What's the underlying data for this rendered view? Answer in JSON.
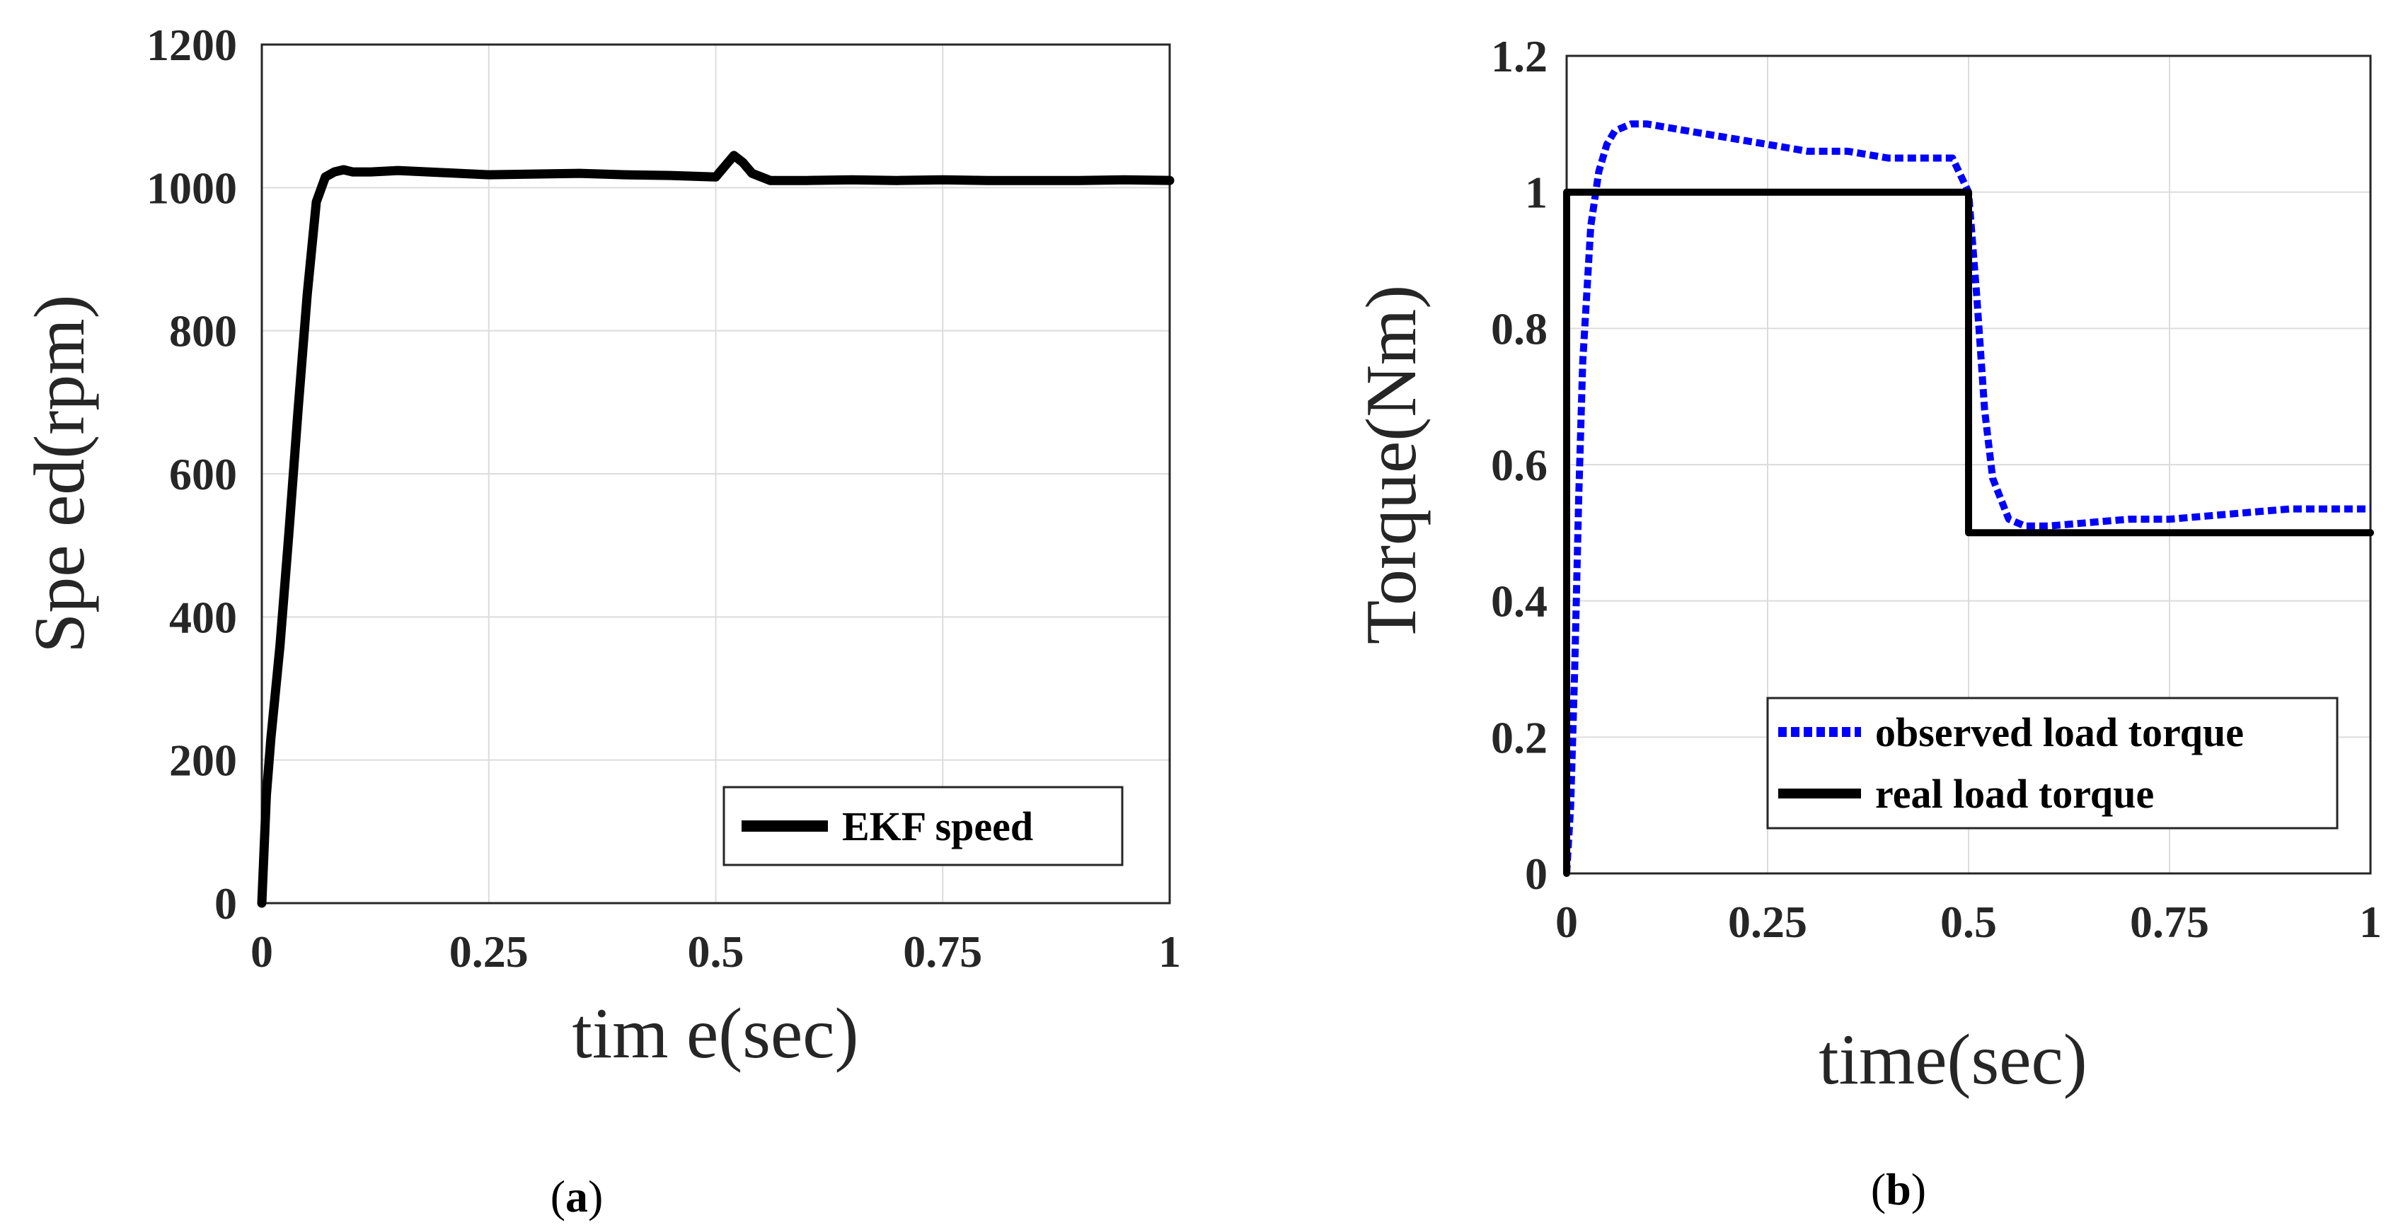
{
  "colors": {
    "black_line": "#000000",
    "blue_line": "#0000ff",
    "grid": "#dcdcdc",
    "axis": "#262626"
  },
  "chart_data": [
    {
      "id": "a",
      "type": "line",
      "caption": {
        "open": "(",
        "letter": "a",
        "close": ")"
      },
      "xlabel": "tim e(sec)",
      "ylabel": "Spe ed(rpm)",
      "xlim": [
        0,
        1
      ],
      "ylim": [
        0,
        1200
      ],
      "xticks": [
        0,
        0.25,
        0.5,
        0.75,
        1
      ],
      "xtick_labels": [
        "0",
        "0.25",
        "0.5",
        "0.75",
        "1"
      ],
      "yticks": [
        0,
        200,
        400,
        600,
        800,
        1000,
        1200
      ],
      "ytick_labels": [
        "0",
        "200",
        "400",
        "600",
        "800",
        "1000",
        "1200"
      ],
      "grid": true,
      "legend_position": "bottom-right",
      "series": [
        {
          "name": "EKF speed",
          "color": "#000000",
          "style": "solid",
          "x": [
            0,
            0.005,
            0.01,
            0.02,
            0.03,
            0.04,
            0.05,
            0.06,
            0.07,
            0.08,
            0.09,
            0.1,
            0.12,
            0.15,
            0.2,
            0.25,
            0.3,
            0.35,
            0.4,
            0.45,
            0.5,
            0.51,
            0.52,
            0.53,
            0.54,
            0.56,
            0.6,
            0.65,
            0.7,
            0.75,
            0.8,
            0.85,
            0.9,
            0.95,
            1.0
          ],
          "y": [
            0,
            150,
            230,
            360,
            520,
            690,
            850,
            980,
            1015,
            1022,
            1025,
            1022,
            1022,
            1024,
            1021,
            1018,
            1019,
            1020,
            1018,
            1017,
            1015,
            1030,
            1045,
            1035,
            1020,
            1010,
            1010,
            1011,
            1010,
            1011,
            1010,
            1010,
            1010,
            1011,
            1010
          ]
        }
      ]
    },
    {
      "id": "b",
      "type": "line",
      "caption": {
        "open": "(",
        "letter": "b",
        "close": ")"
      },
      "xlabel": "time(sec)",
      "ylabel": "Torque(Nm)",
      "xlim": [
        0,
        1
      ],
      "ylim": [
        0,
        1.2
      ],
      "xticks": [
        0,
        0.25,
        0.5,
        0.75,
        1
      ],
      "xtick_labels": [
        "0",
        "0.25",
        "0.5",
        "0.75",
        "1"
      ],
      "yticks": [
        0,
        0.2,
        0.4,
        0.6,
        0.8,
        1,
        1.2
      ],
      "ytick_labels": [
        "0",
        "0.2",
        "0.4",
        "0.6",
        "0.8",
        "1",
        "1.2"
      ],
      "grid": true,
      "legend_position": "bottom-right",
      "series": [
        {
          "name": "observed load torque",
          "color": "#0000ff",
          "style": "dotted",
          "x": [
            0,
            0.005,
            0.01,
            0.015,
            0.02,
            0.03,
            0.04,
            0.05,
            0.06,
            0.08,
            0.1,
            0.15,
            0.2,
            0.25,
            0.3,
            0.35,
            0.4,
            0.45,
            0.48,
            0.5,
            0.51,
            0.52,
            0.53,
            0.55,
            0.57,
            0.6,
            0.65,
            0.7,
            0.75,
            0.8,
            0.85,
            0.9,
            0.95,
            1.0
          ],
          "y": [
            0,
            0.1,
            0.3,
            0.55,
            0.75,
            0.95,
            1.03,
            1.07,
            1.09,
            1.1,
            1.1,
            1.09,
            1.08,
            1.07,
            1.06,
            1.06,
            1.05,
            1.05,
            1.05,
            1.0,
            0.85,
            0.68,
            0.58,
            0.52,
            0.51,
            0.51,
            0.515,
            0.52,
            0.52,
            0.525,
            0.53,
            0.535,
            0.535,
            0.535
          ]
        },
        {
          "name": "real load torque",
          "color": "#000000",
          "style": "solid",
          "x": [
            0,
            0,
            0.5,
            0.5,
            1.0
          ],
          "y": [
            0,
            1.0,
            1.0,
            0.5,
            0.5
          ]
        }
      ]
    }
  ]
}
